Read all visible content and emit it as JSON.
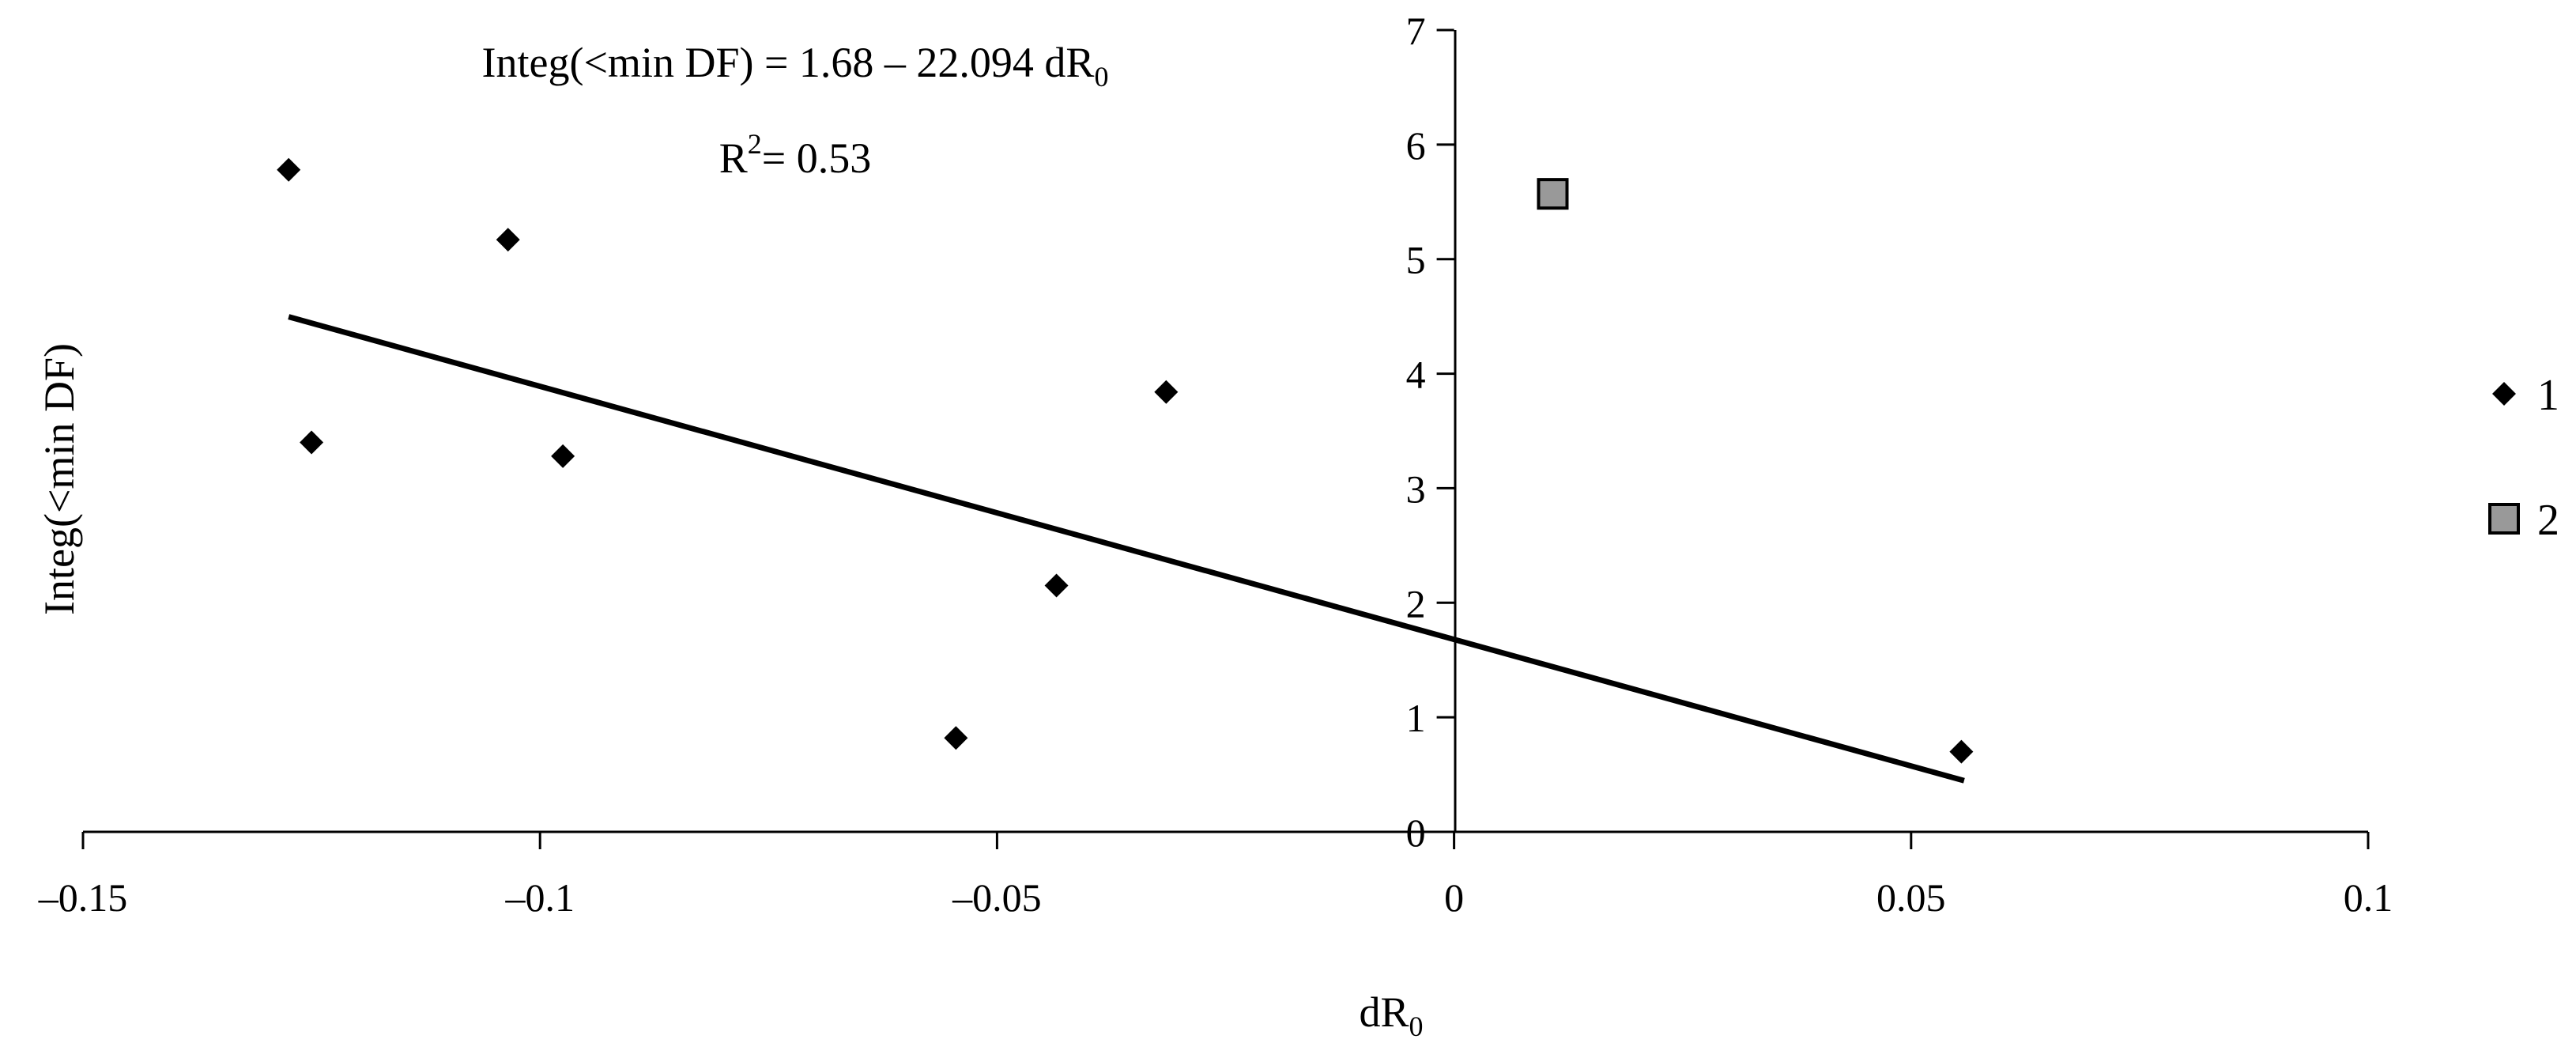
{
  "chart_data": {
    "type": "scatter",
    "annotation": {
      "equation_prefix": "Integ(<min DF) = 1.68 – 22.094 dR",
      "equation_sub": "0",
      "r2_prefix": "R",
      "r2_sup": "2",
      "r2_suffix": "= 0.53"
    },
    "xlabel": {
      "text": "dR",
      "sub": "0"
    },
    "ylabel": "Integ(<min DF)",
    "xlim": [
      -0.15,
      0.1
    ],
    "ylim": [
      0,
      7
    ],
    "x_ticks": [
      -0.15,
      -0.1,
      -0.05,
      0,
      0.05,
      0.1
    ],
    "x_tick_labels": [
      "–0.15",
      "–0.1",
      "–0.05",
      "0",
      "0.05",
      "0.1"
    ],
    "y_ticks": [
      0,
      1,
      2,
      3,
      4,
      5,
      6,
      7
    ],
    "y_tick_labels": [
      "0",
      "1",
      "2",
      "3",
      "4",
      "5",
      "6",
      "7"
    ],
    "grid": false,
    "legend_position": "right",
    "series": [
      {
        "name": "1",
        "marker": "diamond",
        "color": "#000000",
        "x": [
          -0.1275,
          -0.125,
          -0.1035,
          -0.0975,
          -0.0545,
          -0.0435,
          -0.0315,
          0.0555
        ],
        "y": [
          5.78,
          3.4,
          5.17,
          3.28,
          0.82,
          2.15,
          3.84,
          0.7
        ]
      },
      {
        "name": "2",
        "marker": "square",
        "color": "#999999",
        "x": [
          0.0108
        ],
        "y": [
          5.57
        ]
      }
    ],
    "trendline": {
      "intercept": 1.68,
      "slope": -22.094,
      "x_range": [
        -0.1275,
        0.0558
      ]
    }
  }
}
